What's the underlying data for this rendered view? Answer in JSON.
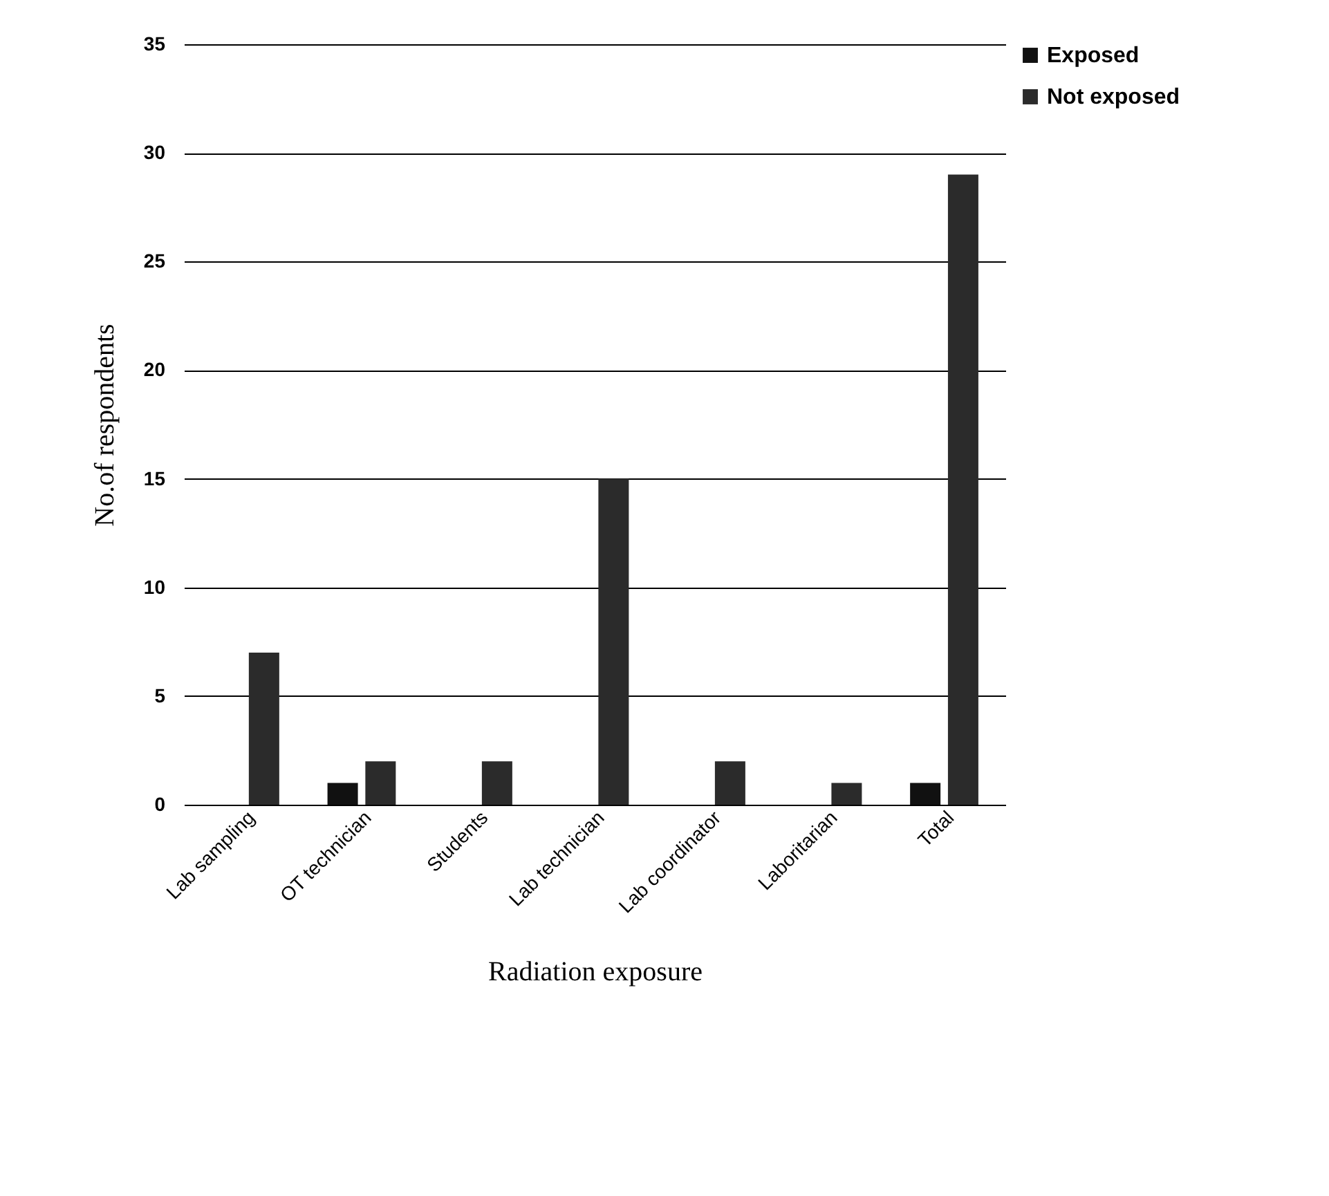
{
  "chart_data": {
    "type": "bar",
    "xlabel": "Radiation exposure",
    "ylabel": "No.of respondents",
    "categories": [
      "Lab sampling",
      "OT technician",
      "Students",
      "Lab  technician",
      "Lab coordinator",
      "Laboritarian",
      "Total"
    ],
    "series": [
      {
        "name": "Exposed",
        "color": "#111111",
        "values": [
          0,
          1,
          0,
          0,
          0,
          0,
          1
        ]
      },
      {
        "name": "Not exposed",
        "color": "#2b2b2b",
        "values": [
          7,
          2,
          2,
          15,
          2,
          1,
          29
        ]
      }
    ],
    "ylim": [
      0,
      35
    ],
    "yticks": [
      0,
      5,
      10,
      15,
      20,
      25,
      30,
      35
    ],
    "grid": "y",
    "legend": "right"
  }
}
